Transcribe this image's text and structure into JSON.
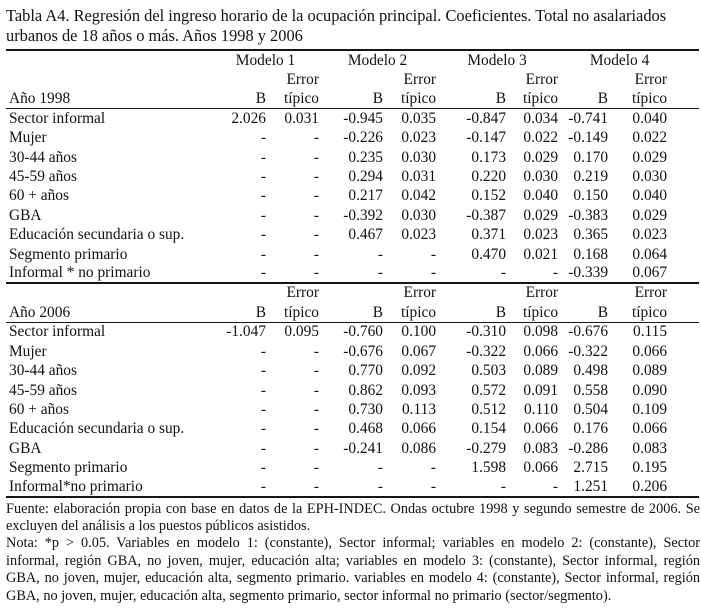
{
  "title": "Tabla A4. Regresión del ingreso horario de la ocupación principal. Coeficientes. Total no asalariados urbanos de 18 años o más. Años 1998 y 2006",
  "table": {
    "models": [
      "Modelo 1",
      "Modelo 2",
      "Modelo 3",
      "Modelo 4"
    ],
    "header": {
      "b": "B",
      "error_top": "Error",
      "error_bottom": "típico"
    },
    "sections": [
      {
        "year_label": "Año 1998",
        "rows": [
          {
            "label": "Sector informal",
            "values": [
              "2.026",
              "0.031",
              "-0.945",
              "0.035",
              "-0.847",
              "0.034",
              "-0.741",
              "0.040"
            ]
          },
          {
            "label": "Mujer",
            "values": [
              "-",
              "-",
              "-0.226",
              "0.023",
              "-0.147",
              "0.022",
              "-0.149",
              "0.022"
            ]
          },
          {
            "label": "30-44 años",
            "values": [
              "-",
              "-",
              "0.235",
              "0.030",
              "0.173",
              "0.029",
              "0.170",
              "0.029"
            ]
          },
          {
            "label": "45-59 años",
            "values": [
              "-",
              "-",
              "0.294",
              "0.031",
              "0.220",
              "0.030",
              "0.219",
              "0.030"
            ]
          },
          {
            "label": "60 + años",
            "values": [
              "-",
              "-",
              "0.217",
              "0.042",
              "0.152",
              "0.040",
              "0.150",
              "0.040"
            ]
          },
          {
            "label": "GBA",
            "values": [
              "-",
              "-",
              "-0.392",
              "0.030",
              "-0.387",
              "0.029",
              "-0.383",
              "0.029"
            ]
          },
          {
            "label": "Educación secundaria o sup.",
            "values": [
              "-",
              "-",
              "0.467",
              "0.023",
              "0.371",
              "0.023",
              "0.365",
              "0.023"
            ]
          },
          {
            "label": "Segmento primario",
            "values": [
              "-",
              "-",
              "-",
              "-",
              "0.470",
              "0.021",
              "0.168",
              "0.064"
            ]
          },
          {
            "label": "Informal * no primario",
            "values": [
              "-",
              "-",
              "-",
              "-",
              "-",
              "-",
              "-0.339",
              "0.067"
            ]
          }
        ]
      },
      {
        "year_label": "Año 2006",
        "rows": [
          {
            "label": "Sector informal",
            "values": [
              "-1.047",
              "0.095",
              "-0.760",
              "0.100",
              "-0.310",
              "0.098",
              "-0.676",
              "0.115"
            ]
          },
          {
            "label": "Mujer",
            "values": [
              "-",
              "-",
              "-0.676",
              "0.067",
              "-0.322",
              "0.066",
              "-0.322",
              "0.066"
            ]
          },
          {
            "label": "30-44 años",
            "values": [
              "-",
              "-",
              "0.770",
              "0.092",
              "0.503",
              "0.089",
              "0.498",
              "0.089"
            ]
          },
          {
            "label": "45-59 años",
            "values": [
              "-",
              "-",
              "0.862",
              "0.093",
              "0.572",
              "0.091",
              "0.558",
              "0.090"
            ]
          },
          {
            "label": "60 + años",
            "values": [
              "-",
              "-",
              "0.730",
              "0.113",
              "0.512",
              "0.110",
              "0.504",
              "0.109"
            ]
          },
          {
            "label": "Educación secundaria o sup.",
            "values": [
              "-",
              "-",
              "0.468",
              "0.066",
              "0.154",
              "0.066",
              "0.176",
              "0.066"
            ]
          },
          {
            "label": "GBA",
            "values": [
              "-",
              "-",
              "-0.241",
              "0.086",
              "-0.279",
              "0.083",
              "-0.286",
              "0.083"
            ]
          },
          {
            "label": "Segmento primario",
            "values": [
              "-",
              "-",
              "-",
              "-",
              "1.598",
              "0.066",
              "2.715",
              "0.195"
            ]
          },
          {
            "label": "Informal*no primario",
            "values": [
              "-",
              "-",
              "-",
              "-",
              "-",
              "-",
              "1.251",
              "0.206"
            ]
          }
        ]
      }
    ]
  },
  "footer": {
    "fuente": "Fuente: elaboración propia con base en datos de la EPH-INDEC. Ondas octubre 1998 y segundo semestre de 2006. Se excluyen del análisis a los puestos públicos asistidos.",
    "nota": "Nota: *p > 0.05. Variables en modelo 1: (constante), Sector informal; variables en modelo 2: (constante), Sector informal, región GBA, no joven, mujer, educación alta; variables en modelo 3: (constante), Sector informal, región GBA, no joven, mujer, educación alta, segmento primario. variables en modelo 4: (constante), Sector informal, región GBA, no joven, mujer, educación alta, segmento primario, sector informal no primario (sector/segmento)."
  }
}
